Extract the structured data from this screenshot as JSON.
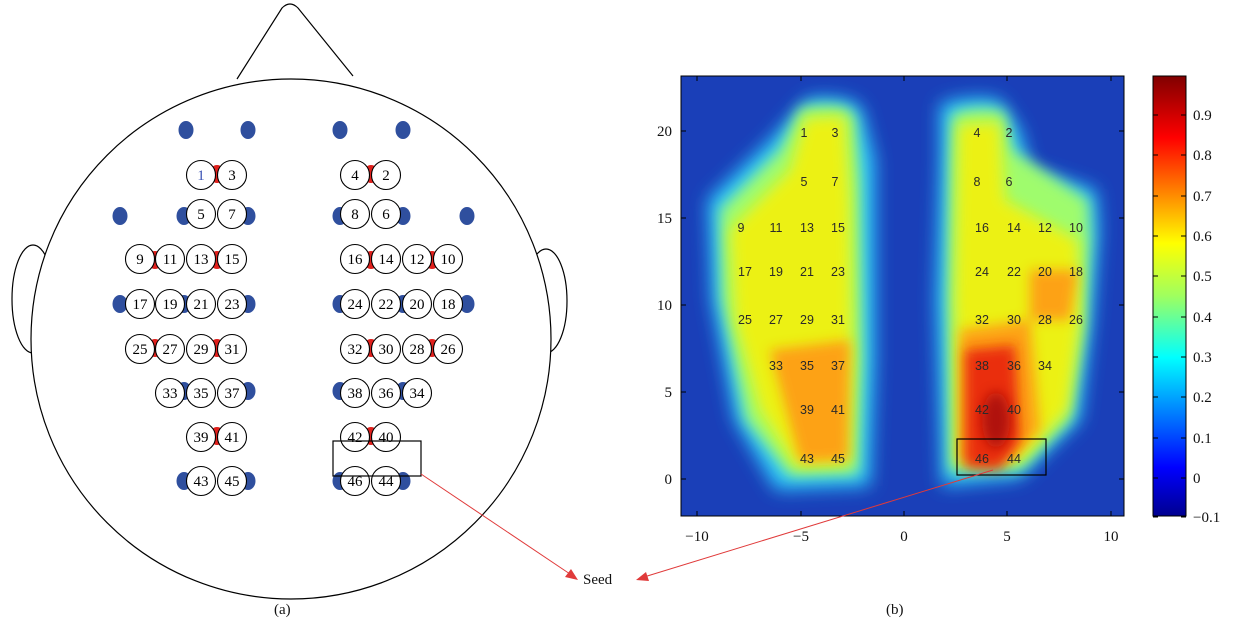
{
  "panel_a": {
    "caption": "(a)",
    "channel_labels": [
      "1",
      "3",
      "4",
      "2",
      "5",
      "7",
      "8",
      "6",
      "9",
      "11",
      "13",
      "15",
      "16",
      "14",
      "12",
      "10",
      "17",
      "19",
      "21",
      "23",
      "24",
      "22",
      "20",
      "18",
      "25",
      "27",
      "29",
      "31",
      "32",
      "30",
      "28",
      "26",
      "33",
      "35",
      "37",
      "38",
      "36",
      "34",
      "39",
      "41",
      "42",
      "40",
      "43",
      "45",
      "46",
      "44"
    ],
    "highlighted_label": "1",
    "seed_box_labels": [
      "46",
      "44"
    ]
  },
  "panel_b": {
    "caption": "(b)",
    "channel_labels": [
      "1",
      "3",
      "4",
      "2",
      "5",
      "7",
      "8",
      "6",
      "9",
      "11",
      "13",
      "15",
      "16",
      "14",
      "12",
      "10",
      "17",
      "19",
      "21",
      "23",
      "24",
      "22",
      "20",
      "18",
      "25",
      "27",
      "29",
      "31",
      "32",
      "30",
      "28",
      "26",
      "33",
      "35",
      "37",
      "38",
      "36",
      "34",
      "39",
      "41",
      "42",
      "40",
      "43",
      "45",
      "46",
      "44"
    ],
    "x_ticks": [
      "−10",
      "−5",
      "0",
      "5",
      "10"
    ],
    "y_ticks": [
      "0",
      "5",
      "10",
      "15",
      "20"
    ],
    "colorbar_ticks": [
      "−0.1",
      "0",
      "0.1",
      "0.2",
      "0.3",
      "0.4",
      "0.5",
      "0.6",
      "0.7",
      "0.8",
      "0.9"
    ]
  },
  "seed_label": "Seed",
  "colors": {
    "blue_optode": "#2f4f9e",
    "red_optode": "#e0201c",
    "arrow": "#e03a3a"
  }
}
